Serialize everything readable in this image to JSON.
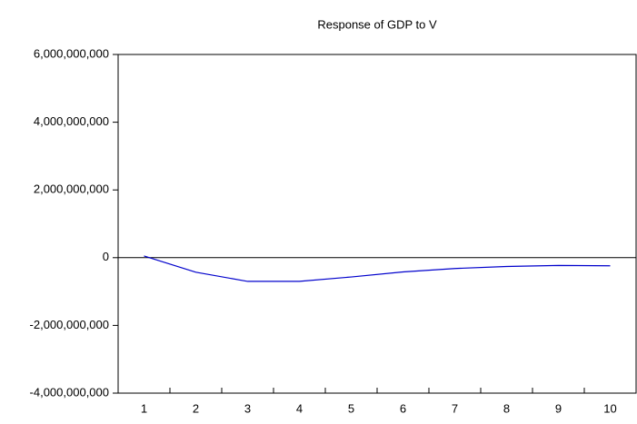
{
  "chart_data": {
    "type": "line",
    "title": "Response of GDP to V",
    "categories": [
      "1",
      "2",
      "3",
      "4",
      "5",
      "6",
      "7",
      "8",
      "9",
      "10"
    ],
    "series": [
      {
        "name": "GDP",
        "color": "#0000cc",
        "values": [
          50000000,
          -430000000,
          -700000000,
          -700000000,
          -570000000,
          -420000000,
          -320000000,
          -260000000,
          -230000000,
          -240000000
        ]
      }
    ],
    "ylim": [
      -4000000000,
      6000000000
    ],
    "yticks": [
      {
        "value": -4000000000,
        "label": "-4,000,000,000"
      },
      {
        "value": -2000000000,
        "label": "-2,000,000,000"
      },
      {
        "value": 0,
        "label": "0"
      },
      {
        "value": 2000000000,
        "label": "2,000,000,000"
      },
      {
        "value": 4000000000,
        "label": "4,000,000,000"
      },
      {
        "value": 6000000000,
        "label": "6,000,000,000"
      }
    ],
    "zero_line": true,
    "grid": false,
    "legend": false
  }
}
